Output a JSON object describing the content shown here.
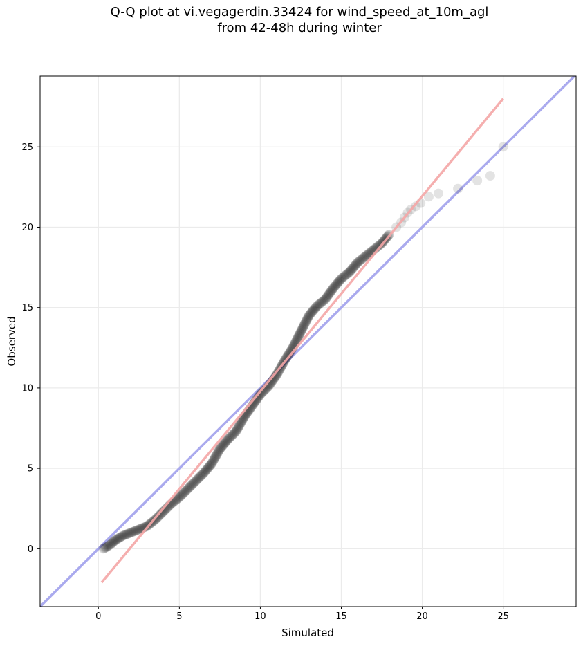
{
  "chart_data": {
    "type": "scatter",
    "title_lines": [
      "Q-Q plot at vi.vegagerdin.33424 for wind_speed_at_10m_agl",
      "from 42-48h during winter"
    ],
    "xlabel": "Simulated",
    "ylabel": "Observed",
    "xlim": [
      -3.6,
      29.5
    ],
    "ylim": [
      -3.6,
      29.4
    ],
    "xticks": [
      0,
      5,
      10,
      15,
      20,
      25
    ],
    "yticks": [
      0,
      5,
      10,
      15,
      20,
      25
    ],
    "grid": true,
    "identity_line": {
      "color": "#aaaaee",
      "from": [
        -3.6,
        -3.6
      ],
      "to": [
        29.5,
        29.5
      ]
    },
    "fit_line": {
      "color": "#f4a6a6",
      "from": [
        0.2,
        -2.1
      ],
      "to": [
        25.0,
        28.0
      ]
    },
    "point_color": "#000000",
    "quantile_curve": [
      [
        0.3,
        0.0
      ],
      [
        0.5,
        0.1
      ],
      [
        0.8,
        0.3
      ],
      [
        1.0,
        0.5
      ],
      [
        1.5,
        0.8
      ],
      [
        2.0,
        1.0
      ],
      [
        2.5,
        1.2
      ],
      [
        3.0,
        1.4
      ],
      [
        3.5,
        1.8
      ],
      [
        4.0,
        2.3
      ],
      [
        4.5,
        2.8
      ],
      [
        5.0,
        3.2
      ],
      [
        5.5,
        3.7
      ],
      [
        6.0,
        4.2
      ],
      [
        6.5,
        4.7
      ],
      [
        7.0,
        5.3
      ],
      [
        7.5,
        6.2
      ],
      [
        8.0,
        6.8
      ],
      [
        8.5,
        7.3
      ],
      [
        9.0,
        8.2
      ],
      [
        9.5,
        8.9
      ],
      [
        10.0,
        9.6
      ],
      [
        10.5,
        10.1
      ],
      [
        11.0,
        10.8
      ],
      [
        11.5,
        11.7
      ],
      [
        12.0,
        12.5
      ],
      [
        12.5,
        13.5
      ],
      [
        13.0,
        14.5
      ],
      [
        13.5,
        15.1
      ],
      [
        14.0,
        15.5
      ],
      [
        14.5,
        16.2
      ],
      [
        15.0,
        16.8
      ],
      [
        15.5,
        17.2
      ],
      [
        16.0,
        17.8
      ],
      [
        16.5,
        18.2
      ],
      [
        17.0,
        18.6
      ],
      [
        17.5,
        19.0
      ],
      [
        18.0,
        19.6
      ]
    ],
    "tail_points": [
      [
        18.4,
        20.0
      ],
      [
        18.7,
        20.3
      ],
      [
        18.9,
        20.6
      ],
      [
        19.1,
        20.9
      ],
      [
        19.3,
        21.1
      ],
      [
        19.6,
        21.3
      ],
      [
        19.9,
        21.5
      ],
      [
        20.4,
        21.9
      ],
      [
        21.0,
        22.1
      ],
      [
        22.2,
        22.4
      ],
      [
        23.4,
        22.9
      ],
      [
        24.2,
        23.2
      ],
      [
        25.0,
        25.0
      ]
    ]
  }
}
